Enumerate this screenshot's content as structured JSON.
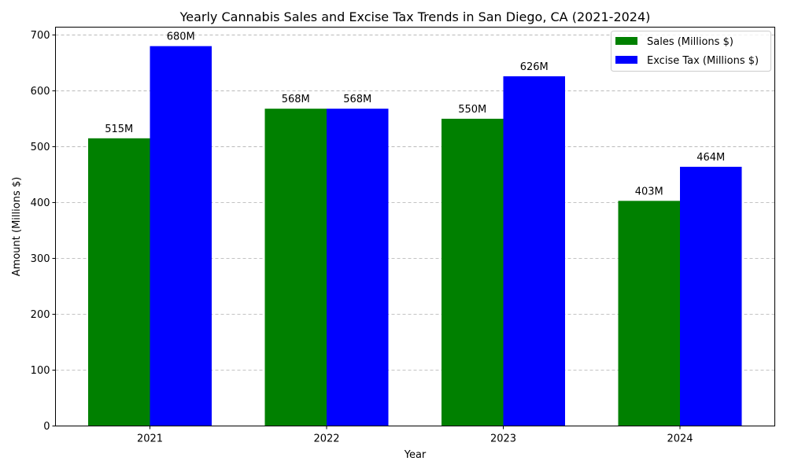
{
  "chart_data": {
    "type": "bar",
    "title": "Yearly Cannabis Sales and Excise Tax Trends in San Diego, CA (2021-2024)",
    "xlabel": "Year",
    "ylabel": "Amount (Millions $)",
    "categories": [
      "2021",
      "2022",
      "2023",
      "2024"
    ],
    "series": [
      {
        "name": "Sales (Millions $)",
        "color": "#008000",
        "values": [
          515,
          568,
          550,
          403
        ],
        "labels": [
          "515M",
          "568M",
          "550M",
          "403M"
        ]
      },
      {
        "name": "Excise Tax (Millions $)",
        "color": "#0000ff",
        "values": [
          680,
          568,
          626,
          464
        ],
        "labels": [
          "680M",
          "568M",
          "626M",
          "464M"
        ]
      }
    ],
    "ylim": [
      0,
      714
    ],
    "yticks": [
      0,
      100,
      200,
      300,
      400,
      500,
      600,
      700
    ],
    "grid": "y-dashed",
    "legend": "top-right"
  }
}
